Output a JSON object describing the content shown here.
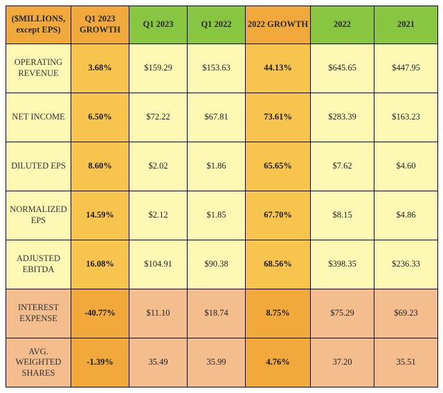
{
  "table": {
    "header": {
      "corner": "($MILLIONS, except EPS)",
      "cols": [
        "Q1 2023 GROWTH",
        "Q1 2023",
        "Q1 2022",
        "2022 GROWTH",
        "2022",
        "2021"
      ]
    },
    "colors": {
      "header_orange": "#f0a93a",
      "header_green": "#88c540",
      "row_yellow_bg": "#fdf8b4",
      "row_yellow_growth": "#f7c44e",
      "row_peach_bg": "#f3bd8d",
      "row_peach_growth": "#f0a93a",
      "border": "#000000"
    },
    "rows": [
      {
        "tone": "yellow",
        "label": "OPERATING REVENUE",
        "q1_growth": "3.68%",
        "q1_2023": "$159.29",
        "q1_2022": "$153.63",
        "fy_growth": "44.13%",
        "fy_2022": "$645.65",
        "fy_2021": "$447.95"
      },
      {
        "tone": "yellow",
        "label": "NET INCOME",
        "q1_growth": "6.50%",
        "q1_2023": "$72.22",
        "q1_2022": "$67.81",
        "fy_growth": "73.61%",
        "fy_2022": "$283.39",
        "fy_2021": "$163.23"
      },
      {
        "tone": "yellow",
        "label": "DILUTED EPS",
        "q1_growth": "8.60%",
        "q1_2023": "$2.02",
        "q1_2022": "$1.86",
        "fy_growth": "65.65%",
        "fy_2022": "$7.62",
        "fy_2021": "$4.60"
      },
      {
        "tone": "yellow",
        "label": "NORMALIZED EPS",
        "q1_growth": "14.59%",
        "q1_2023": "$2.12",
        "q1_2022": "$1.85",
        "fy_growth": "67.70%",
        "fy_2022": "$8.15",
        "fy_2021": "$4.86"
      },
      {
        "tone": "yellow",
        "label": "ADJUSTED EBITDA",
        "q1_growth": "16.08%",
        "q1_2023": "$104.91",
        "q1_2022": "$90.38",
        "fy_growth": "68.56%",
        "fy_2022": "$398.35",
        "fy_2021": "$236.33"
      },
      {
        "tone": "peach",
        "label": "INTEREST EXPENSE",
        "q1_growth": "-40.77%",
        "q1_2023": "$11.10",
        "q1_2022": "$18.74",
        "fy_growth": "8.75%",
        "fy_2022": "$75.29",
        "fy_2021": "$69.23"
      },
      {
        "tone": "peach",
        "label": "AVG. WEIGHTED SHARES",
        "q1_growth": "-1.39%",
        "q1_2023": "35.49",
        "q1_2022": "35.99",
        "fy_growth": "4.76%",
        "fy_2022": "37.20",
        "fy_2021": "35.51"
      }
    ]
  }
}
